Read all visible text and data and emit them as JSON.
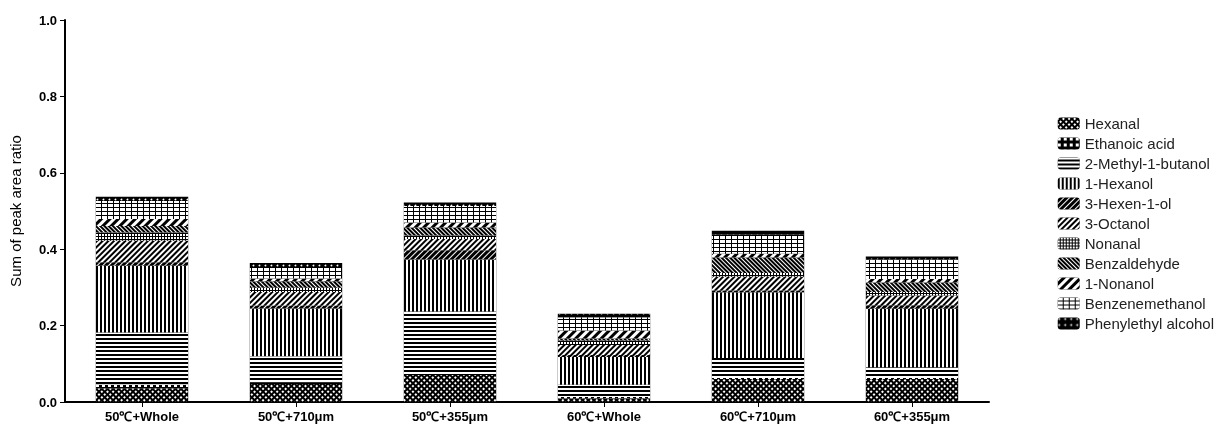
{
  "chart_data": {
    "type": "bar",
    "stacked": true,
    "ylabel": "Sum of peak area ratio",
    "categories": [
      "50℃+Whole",
      "50℃+710μm",
      "50℃+355μm",
      "60℃+Whole",
      "60℃+710μm",
      "60℃+355μm"
    ],
    "series": [
      {
        "name": "Hexanal",
        "color": "#000000",
        "values": [
          0.036,
          0.047,
          0.071,
          0.01,
          0.06,
          0.06
        ]
      },
      {
        "name": "Ethanoic acid",
        "color": "#000000",
        "values": [
          0.009,
          0.005,
          null,
          0.003,
          0.003,
          0.003
        ]
      },
      {
        "name": "2-Methyl-1-butanol",
        "color": "#000000",
        "values": [
          0.137,
          0.068,
          0.166,
          0.032,
          0.052,
          0.028
        ]
      },
      {
        "name": "1-Hexanol",
        "color": "#000000",
        "values": [
          0.175,
          0.125,
          0.136,
          0.073,
          0.172,
          0.153
        ]
      },
      {
        "name": "3-Hexen-1-ol",
        "color": "#000000",
        "values": [
          0.009,
          0.007,
          0.024,
          0.005,
          0.005,
          0.009
        ]
      },
      {
        "name": "3-Octanol",
        "color": "#000000",
        "values": [
          0.056,
          0.036,
          0.03,
          0.026,
          0.036,
          0.026
        ]
      },
      {
        "name": "Nonanal",
        "color": "#000000",
        "values": [
          0.022,
          0.011,
          0.009,
          0.012,
          0.01,
          0.009
        ]
      },
      {
        "name": "Benzaldehyde",
        "color": "#000000",
        "values": [
          0.017,
          0.017,
          0.021,
          0.005,
          0.04,
          0.025
        ]
      },
      {
        "name": "1-Nonanol",
        "color": "#000000",
        "values": [
          0.018,
          0.007,
          0.013,
          0.021,
          0.01,
          0.009
        ]
      },
      {
        "name": "Benzenemethanol",
        "color": "#000000",
        "values": [
          0.047,
          0.028,
          0.043,
          0.035,
          0.05,
          0.052
        ]
      },
      {
        "name": "Phenylethyl alcohol",
        "color": "#000000",
        "values": [
          0.011,
          0.013,
          0.009,
          0.009,
          0.01,
          0.007
        ]
      }
    ],
    "ylim": [
      0,
      1
    ],
    "yticks": [
      {
        "value": 0,
        "label": "0.0"
      },
      {
        "value": 0.2,
        "label": "0.2"
      },
      {
        "value": 0.4,
        "label": "0.4"
      },
      {
        "value": 0.6,
        "label": "0.6"
      },
      {
        "value": 0.8,
        "label": "0.8"
      },
      {
        "value": 1,
        "label": "1.0"
      }
    ],
    "grid": false,
    "legend": "right"
  }
}
